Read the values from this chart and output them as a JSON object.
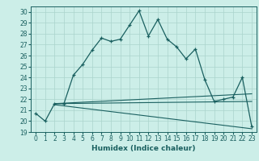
{
  "xlabel": "Humidex (Indice chaleur)",
  "background_color": "#cceee8",
  "grid_color": "#aad4cc",
  "line_color": "#1a6060",
  "xlim": [
    -0.5,
    23.5
  ],
  "ylim": [
    19,
    30.5
  ],
  "yticks": [
    19,
    20,
    21,
    22,
    23,
    24,
    25,
    26,
    27,
    28,
    29,
    30
  ],
  "xticks": [
    0,
    1,
    2,
    3,
    4,
    5,
    6,
    7,
    8,
    9,
    10,
    11,
    12,
    13,
    14,
    15,
    16,
    17,
    18,
    19,
    20,
    21,
    22,
    23
  ],
  "main_x": [
    0,
    1,
    2,
    3,
    4,
    5,
    6,
    7,
    8,
    9,
    10,
    11,
    12,
    13,
    14,
    15,
    16,
    17,
    18,
    19,
    20,
    21,
    22,
    23
  ],
  "main_y": [
    20.7,
    20.0,
    21.6,
    21.6,
    24.2,
    25.2,
    26.5,
    27.6,
    27.3,
    27.5,
    28.8,
    30.1,
    27.8,
    29.3,
    27.5,
    26.8,
    25.7,
    26.6,
    23.8,
    21.8,
    22.0,
    22.2,
    24.0,
    19.5
  ],
  "line2_x": [
    2,
    23
  ],
  "line2_y": [
    21.6,
    22.5
  ],
  "line3_x": [
    2,
    23
  ],
  "line3_y": [
    21.6,
    21.8
  ],
  "line4_x": [
    2,
    23
  ],
  "line4_y": [
    21.5,
    19.3
  ],
  "tick_fontsize": 5.5,
  "xlabel_fontsize": 6.5
}
